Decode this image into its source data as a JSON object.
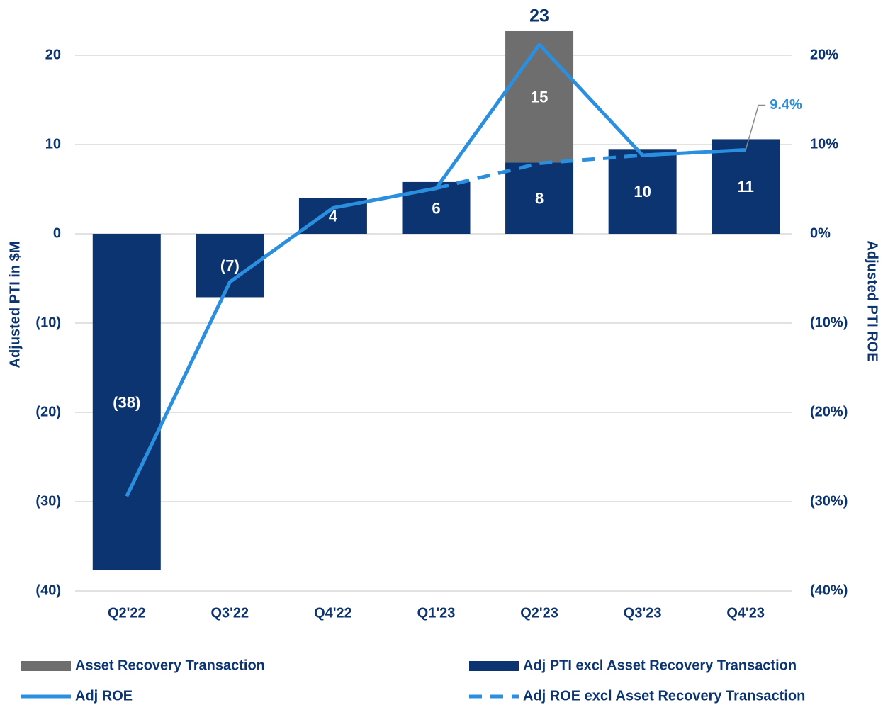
{
  "chart_data": {
    "type": "combo",
    "y_label": "Adjusted PTI in $M",
    "y2_label": "Adjusted PTI ROE",
    "categories": [
      "Q2'22",
      "Q3'22",
      "Q4'22",
      "Q1'23",
      "Q2'23",
      "Q3'23",
      "Q4'23"
    ],
    "series": [
      {
        "name": "Asset Recovery Transaction",
        "type": "bar",
        "color": "#6e6e6e",
        "values": [
          null,
          null,
          null,
          null,
          14.7,
          null,
          null
        ],
        "value_labels": [
          null,
          null,
          null,
          null,
          "15",
          null,
          null
        ]
      },
      {
        "name": "Adj PTI excl Asset Recovery Transaction",
        "type": "bar",
        "color": "#0b3470",
        "values": [
          -37.7,
          -7.1,
          4.0,
          5.8,
          8.0,
          9.5,
          10.6
        ],
        "value_labels": [
          "(38)",
          "(7)",
          "4",
          "6",
          "8",
          "10",
          "11"
        ]
      },
      {
        "name": "Adj ROE",
        "type": "line",
        "axis": "y2",
        "color": "#2b8fe0",
        "dashed": false,
        "values": [
          -29.4,
          -5.4,
          2.9,
          5.1,
          21.2,
          8.8,
          9.4
        ],
        "value_labels": [
          null,
          null,
          null,
          null,
          null,
          null,
          "9.4%"
        ]
      },
      {
        "name": "Adj ROE excl Asset Recovery Transaction",
        "type": "line",
        "axis": "y2",
        "color": "#2b8fe0",
        "dashed": true,
        "values": [
          null,
          null,
          null,
          5.1,
          7.9,
          8.8,
          9.4
        ]
      }
    ],
    "stack_total_labels": [
      null,
      null,
      null,
      null,
      "23",
      null,
      null
    ],
    "ylim": [
      -40,
      24
    ],
    "yticks": [
      {
        "value": -40,
        "label": "(40)"
      },
      {
        "value": -30,
        "label": "(30)"
      },
      {
        "value": -20,
        "label": "(20)"
      },
      {
        "value": -10,
        "label": "(10)"
      },
      0,
      10,
      20
    ],
    "y2lim": [
      -40,
      24
    ],
    "y2ticks": [
      {
        "value": -40,
        "label": "(40%)"
      },
      {
        "value": -30,
        "label": "(30%)"
      },
      {
        "value": -20,
        "label": "(20%)"
      },
      {
        "value": -10,
        "label": "(10%)"
      },
      {
        "value": 0,
        "label": "0%"
      },
      {
        "value": 10,
        "label": "10%"
      },
      {
        "value": 20,
        "label": "20%"
      }
    ],
    "grid": true,
    "legend": "bottom"
  }
}
